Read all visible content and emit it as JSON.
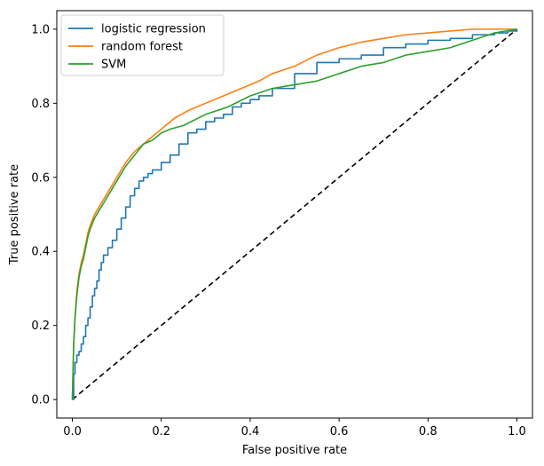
{
  "chart_data": {
    "type": "line",
    "xlabel": "False positive rate",
    "ylabel": "True positive rate",
    "xlim": [
      -0.035,
      1.035
    ],
    "ylim": [
      -0.05,
      1.05
    ],
    "x_ticks": [
      "0.0",
      "0.2",
      "0.4",
      "0.6",
      "0.8",
      "1.0"
    ],
    "y_ticks": [
      "0.0",
      "0.2",
      "0.4",
      "0.6",
      "0.8",
      "1.0"
    ],
    "grid": false,
    "legend_position": "top-left",
    "series": [
      {
        "name": "logistic regression",
        "color": "#1f77b4",
        "x": [
          0,
          0.003,
          0.006,
          0.01,
          0.015,
          0.02,
          0.025,
          0.03,
          0.035,
          0.04,
          0.045,
          0.05,
          0.055,
          0.06,
          0.065,
          0.07,
          0.08,
          0.09,
          0.1,
          0.11,
          0.12,
          0.13,
          0.14,
          0.15,
          0.16,
          0.17,
          0.18,
          0.2,
          0.22,
          0.24,
          0.26,
          0.28,
          0.3,
          0.32,
          0.34,
          0.36,
          0.38,
          0.4,
          0.42,
          0.45,
          0.5,
          0.55,
          0.6,
          0.65,
          0.7,
          0.75,
          0.8,
          0.85,
          0.9,
          0.95,
          0.98,
          1.0
        ],
        "y": [
          0,
          0.07,
          0.1,
          0.12,
          0.13,
          0.15,
          0.17,
          0.2,
          0.22,
          0.25,
          0.28,
          0.3,
          0.32,
          0.35,
          0.37,
          0.39,
          0.41,
          0.43,
          0.46,
          0.49,
          0.52,
          0.55,
          0.57,
          0.59,
          0.6,
          0.61,
          0.62,
          0.64,
          0.66,
          0.69,
          0.72,
          0.73,
          0.75,
          0.76,
          0.77,
          0.79,
          0.8,
          0.81,
          0.82,
          0.84,
          0.88,
          0.91,
          0.92,
          0.93,
          0.95,
          0.96,
          0.97,
          0.975,
          0.985,
          0.99,
          0.995,
          1.0
        ]
      },
      {
        "name": "random forest",
        "color": "#ff7f0e",
        "x": [
          0,
          0.003,
          0.006,
          0.01,
          0.015,
          0.02,
          0.025,
          0.03,
          0.035,
          0.04,
          0.05,
          0.06,
          0.07,
          0.08,
          0.09,
          0.1,
          0.12,
          0.14,
          0.16,
          0.18,
          0.2,
          0.23,
          0.26,
          0.3,
          0.34,
          0.38,
          0.42,
          0.45,
          0.5,
          0.55,
          0.6,
          0.65,
          0.7,
          0.75,
          0.8,
          0.85,
          0.9,
          0.95,
          1.0
        ],
        "y": [
          0,
          0.15,
          0.22,
          0.29,
          0.34,
          0.37,
          0.39,
          0.42,
          0.45,
          0.47,
          0.5,
          0.52,
          0.54,
          0.56,
          0.58,
          0.6,
          0.64,
          0.67,
          0.69,
          0.71,
          0.73,
          0.76,
          0.78,
          0.8,
          0.82,
          0.84,
          0.86,
          0.88,
          0.9,
          0.93,
          0.95,
          0.965,
          0.975,
          0.985,
          0.99,
          0.995,
          1.0,
          1.0,
          1.0
        ]
      },
      {
        "name": "SVM",
        "color": "#2ca02c",
        "x": [
          0,
          0.003,
          0.006,
          0.01,
          0.015,
          0.02,
          0.025,
          0.03,
          0.035,
          0.04,
          0.05,
          0.06,
          0.07,
          0.08,
          0.09,
          0.1,
          0.12,
          0.14,
          0.16,
          0.18,
          0.2,
          0.22,
          0.25,
          0.3,
          0.35,
          0.4,
          0.45,
          0.5,
          0.55,
          0.6,
          0.65,
          0.7,
          0.75,
          0.8,
          0.85,
          0.9,
          0.95,
          1.0
        ],
        "y": [
          0,
          0.15,
          0.22,
          0.28,
          0.33,
          0.36,
          0.38,
          0.41,
          0.44,
          0.46,
          0.49,
          0.51,
          0.53,
          0.55,
          0.57,
          0.59,
          0.63,
          0.66,
          0.69,
          0.7,
          0.72,
          0.73,
          0.74,
          0.77,
          0.79,
          0.82,
          0.84,
          0.85,
          0.86,
          0.88,
          0.9,
          0.91,
          0.93,
          0.94,
          0.95,
          0.97,
          0.99,
          1.0
        ]
      }
    ],
    "reference_line": {
      "style": "dashed",
      "color": "#000000",
      "x": [
        0,
        1
      ],
      "y": [
        0,
        1
      ]
    }
  }
}
